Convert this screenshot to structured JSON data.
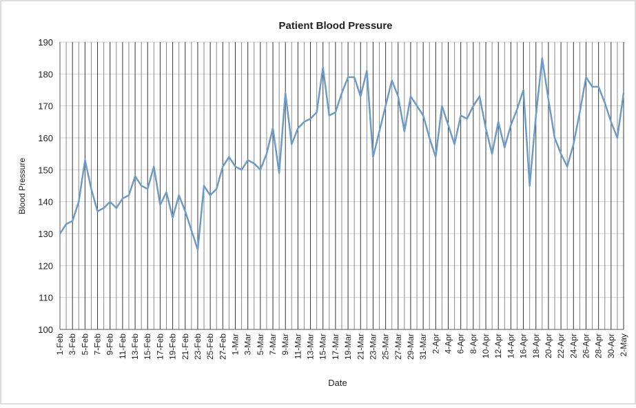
{
  "chart_data": {
    "type": "line",
    "title": "Patient Blood Pressure",
    "x_label": "Date",
    "y_label": "Blood Pressure",
    "categories": [
      "1-Feb",
      null,
      "3-Feb",
      null,
      "5-Feb",
      null,
      "7-Feb",
      null,
      "9-Feb",
      null,
      "11-Feb",
      null,
      "13-Feb",
      null,
      "15-Feb",
      null,
      "17-Feb",
      null,
      "19-Feb",
      null,
      "21-Feb",
      null,
      "23-Feb",
      null,
      "25-Feb",
      null,
      "27-Feb",
      null,
      "1-Mar",
      null,
      "3-Mar",
      null,
      "5-Mar",
      null,
      "7-Mar",
      null,
      "9-Mar",
      null,
      "11-Mar",
      null,
      "13-Mar",
      null,
      "15-Mar",
      null,
      "17-Mar",
      null,
      "19-Mar",
      null,
      "21-Mar",
      null,
      "23-Mar",
      null,
      "25-Mar",
      null,
      "27-Mar",
      null,
      "29-Mar",
      null,
      "31-Mar",
      null,
      "2-Apr",
      null,
      "4-Apr",
      null,
      "6-Apr",
      null,
      "8-Apr",
      null,
      "10-Apr",
      null,
      "12-Apr",
      null,
      "14-Apr",
      null,
      "16-Apr",
      null,
      "18-Apr",
      null,
      "20-Apr",
      null,
      "22-Apr",
      null,
      "24-Apr",
      null,
      "26-Apr",
      null,
      "28-Apr",
      null,
      "30-Apr",
      null,
      "2-May"
    ],
    "values": [
      130,
      133,
      134,
      140,
      153,
      144,
      137,
      138,
      140,
      138,
      141,
      142,
      148,
      145,
      144,
      151,
      139,
      143,
      135,
      142,
      137,
      131,
      125,
      145,
      142,
      144,
      151,
      154,
      151,
      150,
      153,
      152,
      150,
      155,
      163,
      149,
      174,
      158,
      163,
      165,
      166,
      168,
      182,
      167,
      168,
      174,
      179,
      179,
      173,
      181,
      154,
      162,
      170,
      178,
      173,
      162,
      173,
      170,
      167,
      160,
      154,
      170,
      164,
      158,
      167,
      166,
      170,
      173,
      163,
      155,
      165,
      157,
      164,
      169,
      175,
      145,
      167,
      185,
      172,
      160,
      155,
      151,
      158,
      168,
      179,
      176,
      176,
      171,
      165,
      160,
      174
    ],
    "color": "#6b9bc8",
    "ylim": [
      100,
      190
    ],
    "yticks": [
      100,
      110,
      120,
      130,
      140,
      150,
      160,
      170,
      180,
      190
    ],
    "grid": true
  }
}
